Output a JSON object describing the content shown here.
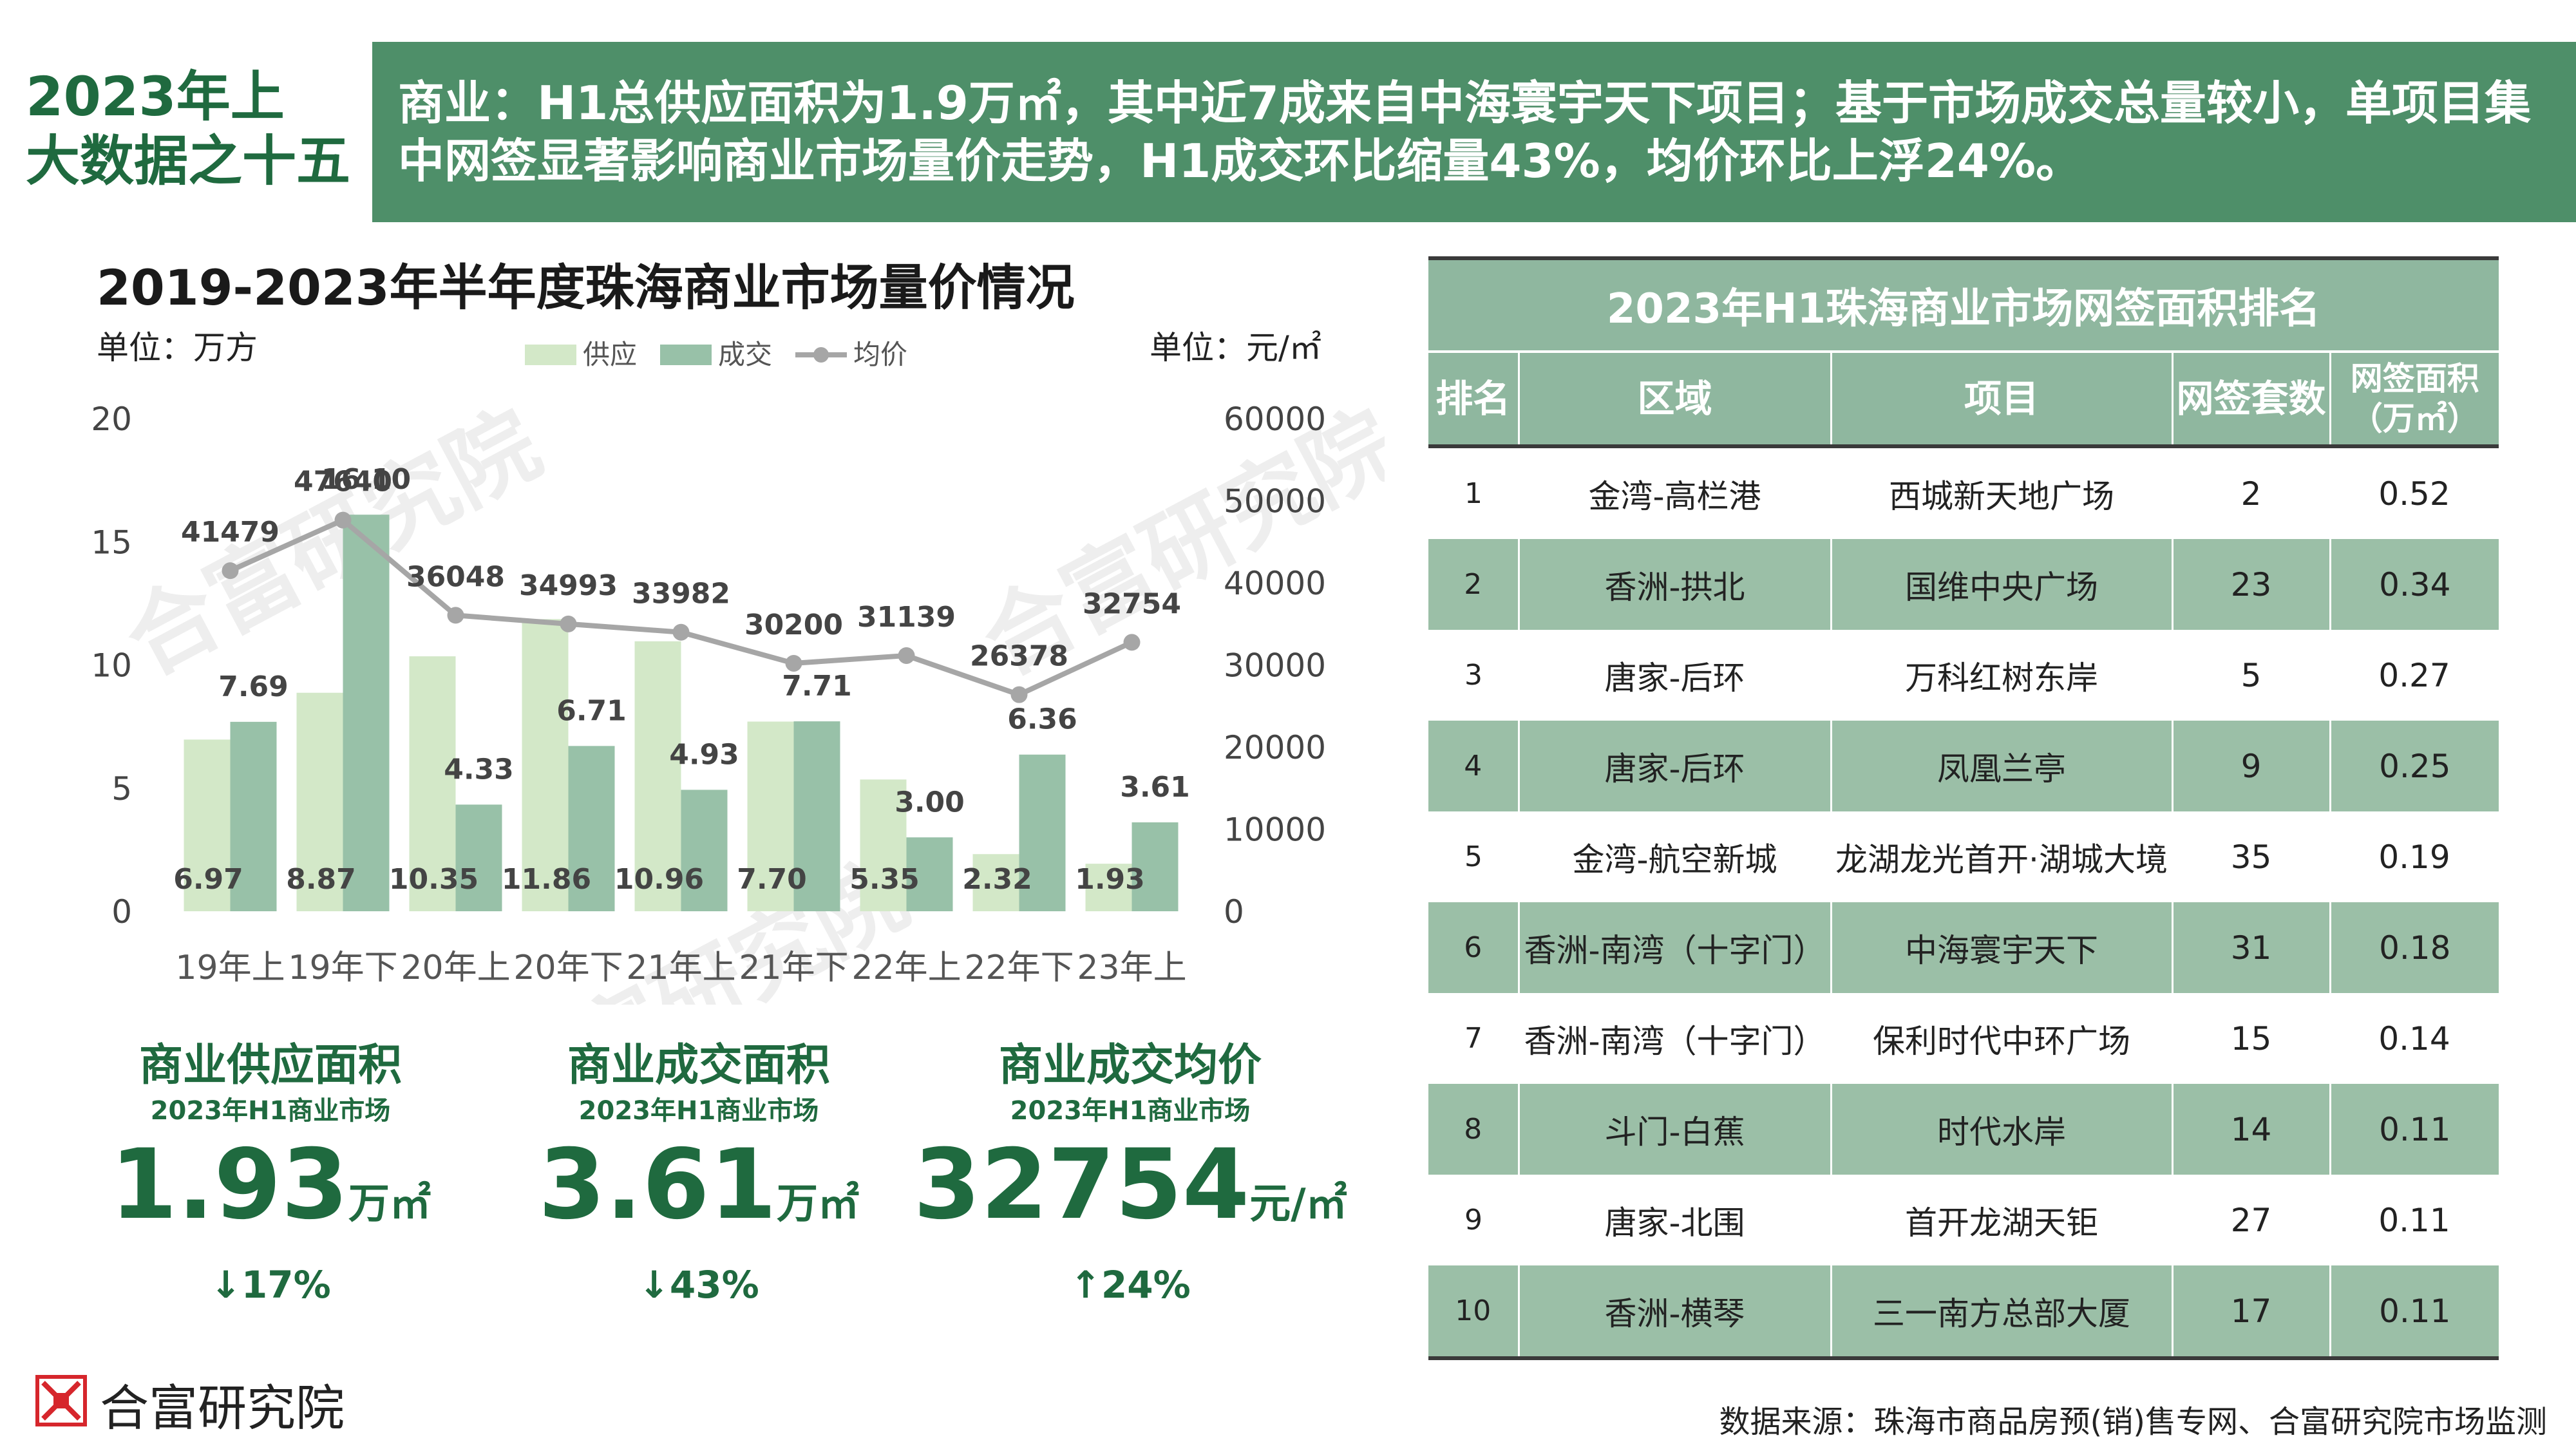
{
  "badge": {
    "line1": "2023年上",
    "line2": "大数据之十五"
  },
  "banner": {
    "text": "商业：H1总供应面积为1.9万㎡，其中近7成来自中海寰宇天下项目；基于市场成交总量较小，单项目集中网签显著影响商业市场量价走势，H1成交环比缩量43%，均价环比上浮24%。"
  },
  "colors": {
    "supply": "#d3e8c8",
    "deal": "#98c1a8",
    "avg": "#a6a6a6",
    "brand": "#1f6a3f",
    "banner": "#4e8f69",
    "logo_red": "#d6262c"
  },
  "chart_data": {
    "type": "bar+line",
    "title": "2019-2023年半年度珠海商业市场量价情况",
    "left_unit": "单位：万方",
    "right_unit": "单位：元/㎡",
    "categories": [
      "19年上",
      "19年下",
      "20年上",
      "20年下",
      "21年上",
      "21年下",
      "22年上",
      "22年下",
      "23年上"
    ],
    "series": [
      {
        "name": "供应",
        "type": "bar",
        "axis": "left",
        "values": [
          6.97,
          8.87,
          10.35,
          11.86,
          10.96,
          7.7,
          5.35,
          2.32,
          1.93
        ]
      },
      {
        "name": "成交",
        "type": "bar",
        "axis": "left",
        "values": [
          7.69,
          16.1,
          4.33,
          6.71,
          4.93,
          7.71,
          3.0,
          6.36,
          3.61
        ]
      },
      {
        "name": "均价",
        "type": "line",
        "axis": "right",
        "values": [
          41479,
          47640,
          36048,
          34993,
          33982,
          30200,
          31139,
          26378,
          32754
        ]
      }
    ],
    "left_ticks": [
      0,
      5,
      10,
      15,
      20
    ],
    "right_ticks": [
      0,
      10000,
      20000,
      30000,
      40000,
      50000,
      60000
    ],
    "ylim_left": [
      0,
      20
    ],
    "ylim_right": [
      0,
      60000
    ],
    "legend_placement": "top-center",
    "grid": false
  },
  "kpis": [
    {
      "title": "商业供应面积",
      "sub": "2023年H1商业市场",
      "value": "1.93",
      "unit": "万㎡",
      "change": "↓17%"
    },
    {
      "title": "商业成交面积",
      "sub": "2023年H1商业市场",
      "value": "3.61",
      "unit": "万㎡",
      "change": "↓43%"
    },
    {
      "title": "商业成交均价",
      "sub": "2023年H1商业市场",
      "value": "32754",
      "unit": "元/㎡",
      "change": "↑24%"
    }
  ],
  "table": {
    "title": "2023年H1珠海商业市场网签面积排名",
    "headers": [
      "排名",
      "区域",
      "项目",
      "网签套数",
      "网签面积（万㎡）"
    ],
    "rows": [
      [
        "1",
        "金湾-高栏港",
        "西城新天地广场",
        "2",
        "0.52"
      ],
      [
        "2",
        "香洲-拱北",
        "国维中央广场",
        "23",
        "0.34"
      ],
      [
        "3",
        "唐家-后环",
        "万科红树东岸",
        "5",
        "0.27"
      ],
      [
        "4",
        "唐家-后环",
        "凤凰兰亭",
        "9",
        "0.25"
      ],
      [
        "5",
        "金湾-航空新城",
        "龙湖龙光首开·湖城大境",
        "35",
        "0.19"
      ],
      [
        "6",
        "香洲-南湾（十字门）",
        "中海寰宇天下",
        "31",
        "0.18"
      ],
      [
        "7",
        "香洲-南湾（十字门）",
        "保利时代中环广场",
        "15",
        "0.14"
      ],
      [
        "8",
        "斗门-白蕉",
        "时代水岸",
        "14",
        "0.11"
      ],
      [
        "9",
        "唐家-北围",
        "首开龙湖天钜",
        "27",
        "0.11"
      ],
      [
        "10",
        "香洲-横琴",
        "三一南方总部大厦",
        "17",
        "0.11"
      ]
    ]
  },
  "footer": {
    "logo_text": "合富研究院",
    "source": "数据来源：珠海市商品房预(销)售专网、合富研究院市场监测"
  },
  "watermark": "合富研究院"
}
